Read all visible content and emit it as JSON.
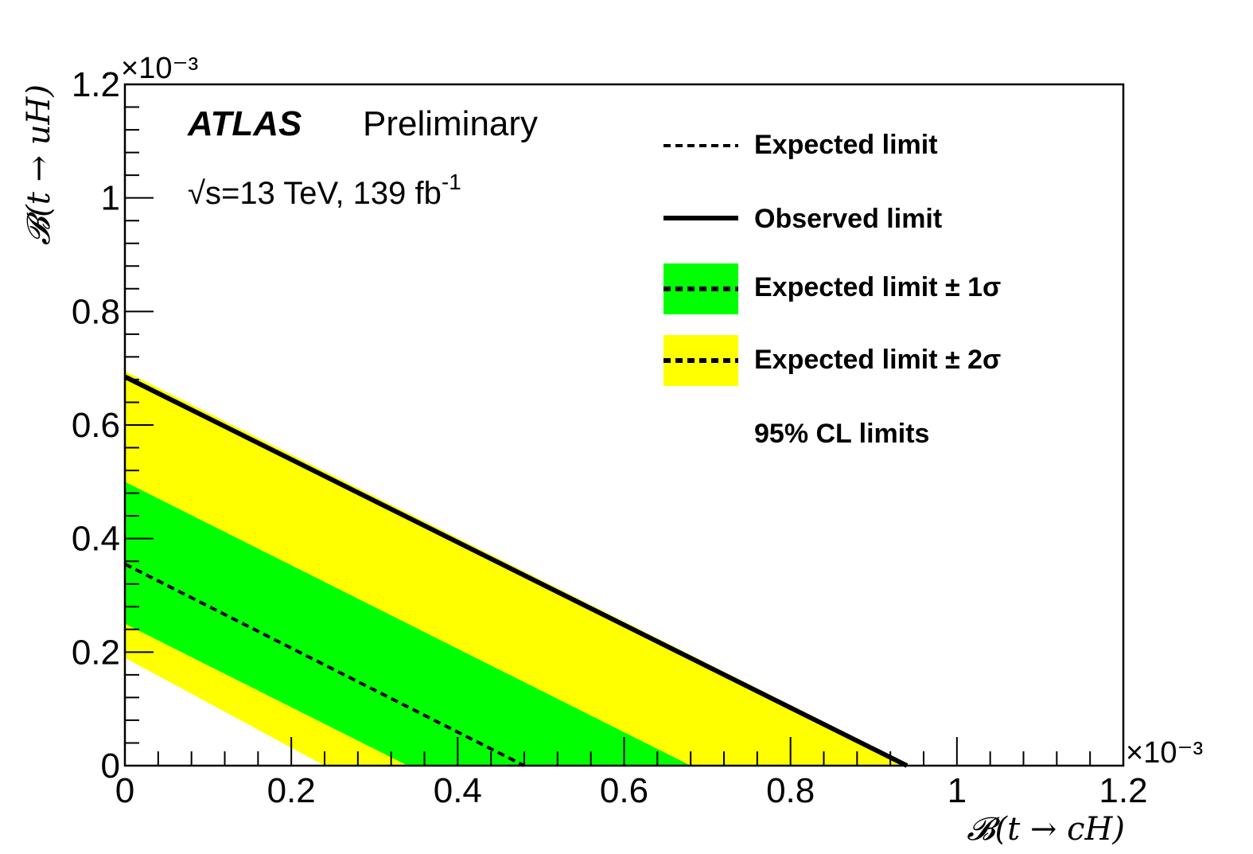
{
  "header": {
    "experiment": "ATLAS",
    "status": "Preliminary",
    "energy_lumi": "s=13 TeV, 139 fb",
    "energy_sqrt": "√",
    "energy_text": "s=13 TeV, 139 fb",
    "lumi_exponent": "-1"
  },
  "legend": {
    "items": [
      {
        "label": "Expected limit",
        "symbol": "dashed-line"
      },
      {
        "label": "Observed limit",
        "symbol": "solid-line"
      },
      {
        "label": "Expected limit ± 1σ",
        "symbol": "green-band-dashed"
      },
      {
        "label": "Expected limit ± 2σ",
        "symbol": "yellow-band-dashed"
      }
    ],
    "note": "95% CL limits"
  },
  "colors": {
    "one_sigma": "#00ff00",
    "two_sigma": "#ffff00",
    "lines": "#000000"
  },
  "chart_data": {
    "type": "area",
    "xlabel": "𝓑(t → cH)",
    "ylabel": "𝓑(t → uH)",
    "x_exponent": "×10⁻³",
    "y_exponent": "×10⁻³",
    "xlim": [
      0,
      1.2
    ],
    "ylim": [
      0,
      1.2
    ],
    "x_ticks": [
      "0",
      "0.2",
      "0.4",
      "0.6",
      "0.8",
      "1",
      "1.2"
    ],
    "y_ticks": [
      "0",
      "0.2",
      "0.4",
      "0.6",
      "0.8",
      "1",
      "1.2"
    ],
    "series": [
      {
        "name": "Observed limit",
        "style": "solid",
        "x": [
          0,
          0.94
        ],
        "y": [
          0.685,
          0
        ]
      },
      {
        "name": "Expected limit",
        "style": "dashed",
        "x": [
          0,
          0.48
        ],
        "y": [
          0.355,
          0
        ]
      },
      {
        "name": "Expected limit ± 1σ",
        "style": "band",
        "lower": {
          "x": [
            0,
            0.34
          ],
          "y": [
            0.25,
            0
          ]
        },
        "upper": {
          "x": [
            0,
            0.68
          ],
          "y": [
            0.5,
            0
          ]
        }
      },
      {
        "name": "Expected limit ± 2σ",
        "style": "band",
        "lower": {
          "x": [
            0,
            0.24
          ],
          "y": [
            0.19,
            0
          ]
        },
        "upper": {
          "x": [
            0,
            0.945
          ],
          "y": [
            0.695,
            0
          ]
        }
      }
    ]
  }
}
